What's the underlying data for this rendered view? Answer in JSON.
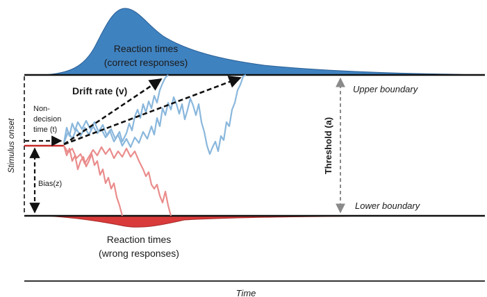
{
  "labels": {
    "rt_correct_line1": "Reaction times",
    "rt_correct_line2": "(correct responses)",
    "rt_wrong_line1": "Reaction times",
    "rt_wrong_line2": "(wrong responses)",
    "drift_rate": "Drift rate (v)",
    "nondecision_line1": "Non-",
    "nondecision_line2": "decision",
    "nondecision_line3": "time (t)",
    "stimulus_onset": "Stimulus onset",
    "bias": "Bias(z)",
    "threshold": "Threshold (a)",
    "upper_boundary": "Upper boundary",
    "lower_boundary": "Lower boundary",
    "time_axis": "Time"
  },
  "colors": {
    "correct_fill": "#3f82c0",
    "correct_path": "#8ab7dc",
    "wrong_fill": "#d93a3a",
    "wrong_path": "#ea8c8c",
    "boundary": "#111111",
    "arrow": "#111111",
    "threshold_arrow": "#8a8a8a"
  }
}
